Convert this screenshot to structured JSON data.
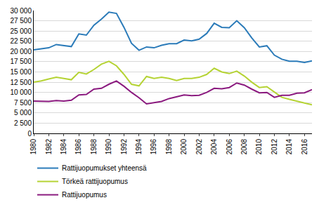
{
  "chart_data": {
    "type": "line",
    "x": [
      1980,
      1981,
      1982,
      1983,
      1984,
      1985,
      1986,
      1987,
      1988,
      1989,
      1990,
      1991,
      1992,
      1993,
      1994,
      1995,
      1996,
      1997,
      1998,
      1999,
      2000,
      2001,
      2002,
      2003,
      2004,
      2005,
      2006,
      2007,
      2008,
      2009,
      2010,
      2011,
      2012,
      2013,
      2014,
      2015,
      2016,
      2017
    ],
    "series": [
      {
        "name": "Rattijuopumukset yhteensä",
        "color": "#2b7bb9",
        "values": [
          20400,
          20600,
          20900,
          21700,
          21400,
          21200,
          24300,
          24000,
          26400,
          27900,
          29600,
          29300,
          25900,
          22000,
          20300,
          21100,
          20900,
          21500,
          21900,
          21900,
          22800,
          22600,
          23000,
          24400,
          26900,
          25900,
          25800,
          27500,
          25800,
          23300,
          21100,
          21400,
          19100,
          18100,
          17600,
          17600,
          17300,
          17700
        ]
      },
      {
        "name": "Törkeä rattijuopumus",
        "color": "#b5d334",
        "values": [
          12500,
          12800,
          13300,
          13700,
          13400,
          13100,
          14900,
          14500,
          15600,
          16900,
          17600,
          16500,
          14400,
          12000,
          11600,
          13900,
          13400,
          13700,
          13400,
          12900,
          13400,
          13400,
          13700,
          14400,
          15900,
          15000,
          14600,
          15200,
          14000,
          12500,
          11200,
          11400,
          10100,
          8800,
          8300,
          7800,
          7400,
          7000
        ]
      },
      {
        "name": "Rattijuopumus",
        "color": "#8b1a7f",
        "values": [
          7900,
          7800,
          7800,
          8000,
          7900,
          8100,
          9400,
          9500,
          10800,
          11000,
          12000,
          12800,
          11500,
          10000,
          8700,
          7200,
          7500,
          7800,
          8500,
          9000,
          9400,
          9200,
          9300,
          10000,
          11000,
          10900,
          11200,
          12300,
          11800,
          10800,
          9900,
          10000,
          8800,
          9300,
          9300,
          9800,
          9900,
          10700
        ]
      }
    ],
    "xlim": [
      1980,
      2017
    ],
    "xticks": [
      1980,
      1982,
      1984,
      1986,
      1988,
      1990,
      1992,
      1994,
      1996,
      1998,
      2000,
      2002,
      2004,
      2006,
      2008,
      2010,
      2012,
      2014,
      2016
    ],
    "ylim": [
      0,
      30000
    ],
    "yticks": [
      0,
      {
        "value": 2500,
        "label": "2 500"
      },
      {
        "value": 5000,
        "label": "5 000"
      },
      {
        "value": 7500,
        "label": "7 500"
      },
      {
        "value": 10000,
        "label": "10 000"
      },
      {
        "value": 12500,
        "label": "12 500"
      },
      {
        "value": 15000,
        "label": "15 000"
      },
      {
        "value": 17500,
        "label": "17 500"
      },
      {
        "value": 20000,
        "label": "20 000"
      },
      {
        "value": 22500,
        "label": "22 500"
      },
      {
        "value": 25000,
        "label": "25 000"
      },
      {
        "value": 27500,
        "label": "27 500"
      },
      {
        "value": 30000,
        "label": "30 000"
      }
    ],
    "grid": true
  }
}
